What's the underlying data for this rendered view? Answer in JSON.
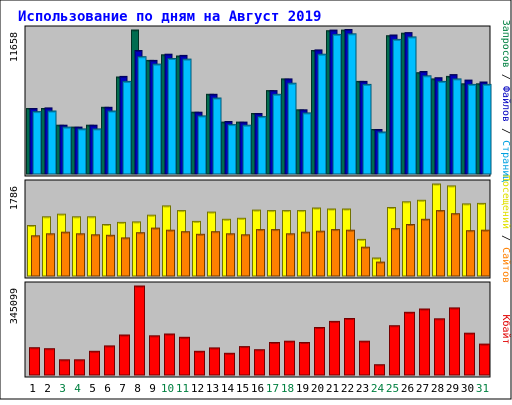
{
  "chart_data": {
    "type": "bar",
    "title": "Использование по дням на Август 2019",
    "categories": [
      "1",
      "2",
      "3",
      "4",
      "5",
      "6",
      "7",
      "8",
      "9",
      "10",
      "11",
      "12",
      "13",
      "14",
      "15",
      "16",
      "17",
      "18",
      "19",
      "20",
      "21",
      "22",
      "23",
      "24",
      "25",
      "26",
      "27",
      "28",
      "29",
      "30",
      "31"
    ],
    "weekend_days": [
      3,
      4,
      10,
      11,
      17,
      18,
      24,
      25,
      31
    ],
    "panels": [
      {
        "name": "requests",
        "ymax_label": "11658",
        "ymax": 11658,
        "side_label_parts": [
          {
            "text": "Запросов",
            "color": "#008040"
          },
          {
            "text": " / ",
            "color": "#000000"
          },
          {
            "text": "Файлов",
            "color": "#0000c0"
          },
          {
            "text": " / ",
            "color": "#000000"
          },
          {
            "text": "Страниц",
            "color": "#00a0e0"
          }
        ],
        "series": [
          {
            "name": "Запросов",
            "color": "#006c50",
            "values": [
              5300,
              5300,
              3950,
              3800,
              3950,
              5400,
              7850,
              11658,
              9200,
              9650,
              9550,
              5000,
              6450,
              4200,
              4200,
              4900,
              6750,
              7700,
              5200,
              10000,
              11600,
              11650,
              7500,
              3600,
              11200,
              11400,
              8200,
              7700,
              7900,
              7300,
              7300
            ]
          },
          {
            "name": "Файлов",
            "color": "#0000c0",
            "values": [
              5300,
              5350,
              3950,
              3800,
              3950,
              5400,
              7900,
              10000,
              9200,
              9700,
              9600,
              5000,
              6450,
              4250,
              4200,
              4900,
              6750,
              7700,
              5200,
              10050,
              11650,
              11700,
              7500,
              3600,
              11250,
              11450,
              8300,
              7800,
              8050,
              7600,
              7450
            ]
          },
          {
            "name": "Страниц",
            "color": "#00bfff",
            "values": [
              5050,
              5100,
              3800,
              3650,
              3650,
              5100,
              7500,
              9500,
              8900,
              9350,
              9300,
              4700,
              6150,
              4000,
              3950,
              4650,
              6450,
              7350,
              4950,
              9700,
              11300,
              11350,
              7250,
              3400,
              10900,
              11100,
              7950,
              7500,
              7700,
              7250,
              7250
            ]
          }
        ]
      },
      {
        "name": "visits",
        "ymax_label": "1786",
        "ymax": 1786,
        "side_label_parts": [
          {
            "text": "Посещений",
            "color": "#e0e000"
          },
          {
            "text": " / ",
            "color": "#000000"
          },
          {
            "text": "Сайтов",
            "color": "#ff8000"
          }
        ],
        "series": [
          {
            "name": "Посещений",
            "color": "#ffff00",
            "values": [
              980,
              1150,
              1200,
              1150,
              1150,
              1000,
              1040,
              1050,
              1180,
              1360,
              1270,
              1060,
              1240,
              1100,
              1120,
              1280,
              1270,
              1270,
              1270,
              1320,
              1300,
              1300,
              710,
              350,
              1330,
              1440,
              1470,
              1786,
              1750,
              1400,
              1410
            ]
          },
          {
            "name": "Сайтов",
            "color": "#ff8000",
            "values": [
              780,
              820,
              850,
              820,
              800,
              790,
              740,
              840,
              930,
              890,
              860,
              810,
              860,
              820,
              800,
              900,
              900,
              820,
              850,
              870,
              900,
              890,
              560,
              270,
              920,
              1000,
              1100,
              1270,
              1210,
              880,
              890
            ]
          }
        ]
      },
      {
        "name": "kbytes",
        "ymax_label": "345099",
        "ymax": 345099,
        "side_label_parts": [
          {
            "text": "Кбайт",
            "color": "#e00000"
          }
        ],
        "series": [
          {
            "name": "Кбайт",
            "color": "#ff0000",
            "values": [
              106000,
              102000,
              59000,
              59000,
              92000,
              113000,
              155000,
              345099,
              152000,
              159000,
              146000,
              92000,
              105000,
              84000,
              110000,
              98000,
              126000,
              131000,
              126000,
              184000,
              208000,
              219000,
              131000,
              40000,
              191000,
              243000,
              256000,
              218000,
              260000,
              162000,
              120000
            ]
          }
        ]
      }
    ]
  }
}
